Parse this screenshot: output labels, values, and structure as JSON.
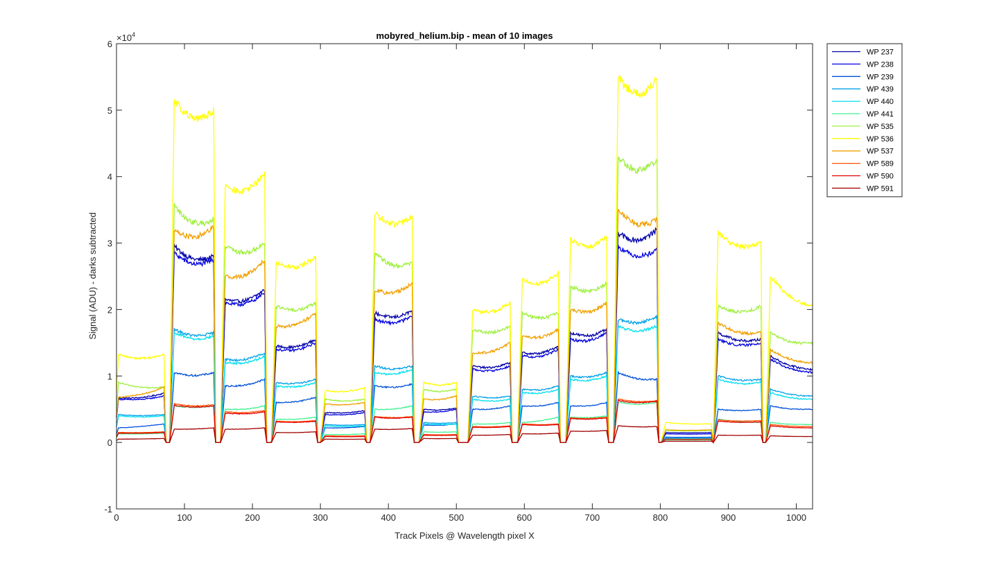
{
  "chart_data": {
    "type": "line",
    "title": "mobyred_helium.bip - mean of 10 images",
    "xlabel": "Track Pixels @ Wavelength pixel X",
    "ylabel": "Signal (ADU) - darks subtracted",
    "exponent_label": "×10",
    "exponent_power": "4",
    "xlim": [
      0,
      1024
    ],
    "ylim": [
      -1,
      6
    ],
    "y_scale_factor": 10000,
    "xticks": [
      "0",
      "100",
      "200",
      "300",
      "400",
      "500",
      "600",
      "700",
      "800",
      "900",
      "1000"
    ],
    "yticks": [
      "-1",
      "0",
      "1",
      "2",
      "3",
      "4",
      "5",
      "6"
    ],
    "legend_position": "outside-top-right",
    "segments": [
      {
        "start": 3,
        "end": 70
      },
      {
        "start": 85,
        "end": 143
      },
      {
        "start": 160,
        "end": 218
      },
      {
        "start": 235,
        "end": 293
      },
      {
        "start": 307,
        "end": 365
      },
      {
        "start": 380,
        "end": 435
      },
      {
        "start": 452,
        "end": 500
      },
      {
        "start": 524,
        "end": 579
      },
      {
        "start": 597,
        "end": 650
      },
      {
        "start": 668,
        "end": 721
      },
      {
        "start": 738,
        "end": 795
      },
      {
        "start": 808,
        "end": 875
      },
      {
        "start": 885,
        "end": 948
      },
      {
        "start": 962,
        "end": 1024
      }
    ],
    "series": [
      {
        "name": "WP 237",
        "color": "#0000a8",
        "levels": [
          [
            6.7,
            7.4
          ],
          [
            29.5,
            28.0
          ],
          [
            21.5,
            23.0
          ],
          [
            14.5,
            15.5
          ],
          [
            4.5,
            4.8
          ],
          [
            19.5,
            19.8
          ],
          [
            5.0,
            5.2
          ],
          [
            11.5,
            12.0
          ],
          [
            13.5,
            14.5
          ],
          [
            16.5,
            17.0
          ],
          [
            31.5,
            32.0
          ],
          [
            1.5,
            1.5
          ],
          [
            16.5,
            15.5
          ],
          [
            13.0,
            11.0
          ]
        ]
      },
      {
        "name": "WP 238",
        "color": "#0000e0",
        "levels": [
          [
            6.5,
            7.0
          ],
          [
            28.5,
            27.5
          ],
          [
            21.0,
            22.5
          ],
          [
            14.0,
            15.0
          ],
          [
            4.2,
            4.5
          ],
          [
            18.5,
            19.0
          ],
          [
            4.6,
            5.0
          ],
          [
            11.0,
            11.5
          ],
          [
            13.0,
            14.0
          ],
          [
            15.5,
            16.5
          ],
          [
            29.5,
            29.0
          ],
          [
            1.3,
            1.3
          ],
          [
            15.5,
            15.0
          ],
          [
            12.5,
            10.5
          ]
        ]
      },
      {
        "name": "WP 239",
        "color": "#0050d8",
        "levels": [
          [
            2.2,
            2.8
          ],
          [
            10.5,
            10.5
          ],
          [
            8.5,
            9.5
          ],
          [
            6.0,
            6.8
          ],
          [
            2.2,
            2.4
          ],
          [
            8.5,
            8.8
          ],
          [
            2.6,
            2.8
          ],
          [
            5.0,
            5.5
          ],
          [
            5.5,
            6.0
          ],
          [
            5.5,
            6.0
          ],
          [
            10.5,
            9.5
          ],
          [
            0.8,
            0.8
          ],
          [
            5.0,
            5.0
          ],
          [
            5.5,
            5.0
          ]
        ]
      },
      {
        "name": "WP 439",
        "color": "#00a0e8",
        "levels": [
          [
            4.2,
            4.2
          ],
          [
            17.0,
            16.5
          ],
          [
            12.5,
            13.5
          ],
          [
            9.0,
            9.5
          ],
          [
            2.7,
            2.7
          ],
          [
            11.5,
            11.5
          ],
          [
            3.0,
            3.0
          ],
          [
            7.0,
            7.0
          ],
          [
            8.0,
            8.5
          ],
          [
            10.0,
            10.5
          ],
          [
            18.5,
            19.0
          ],
          [
            0.7,
            0.7
          ],
          [
            10.0,
            9.5
          ],
          [
            8.0,
            7.0
          ]
        ]
      },
      {
        "name": "WP 440",
        "color": "#00e0f0",
        "levels": [
          [
            4.0,
            4.0
          ],
          [
            16.5,
            16.0
          ],
          [
            12.0,
            13.0
          ],
          [
            8.5,
            9.0
          ],
          [
            2.5,
            2.5
          ],
          [
            10.5,
            11.0
          ],
          [
            2.8,
            2.8
          ],
          [
            6.5,
            6.5
          ],
          [
            7.5,
            8.0
          ],
          [
            9.5,
            10.0
          ],
          [
            17.5,
            17.5
          ],
          [
            0.6,
            0.6
          ],
          [
            9.5,
            9.0
          ],
          [
            7.5,
            6.5
          ]
        ]
      },
      {
        "name": "WP 441",
        "color": "#40f090",
        "levels": [
          [
            1.3,
            1.4
          ],
          [
            5.5,
            5.5
          ],
          [
            5.0,
            5.5
          ],
          [
            3.5,
            3.8
          ],
          [
            1.2,
            1.3
          ],
          [
            5.0,
            5.5
          ],
          [
            1.6,
            1.6
          ],
          [
            2.8,
            3.0
          ],
          [
            3.0,
            3.8
          ],
          [
            3.8,
            4.0
          ],
          [
            6.0,
            6.0
          ],
          [
            0.4,
            0.4
          ],
          [
            3.5,
            3.0
          ],
          [
            3.0,
            2.7
          ]
        ]
      },
      {
        "name": "WP 535",
        "color": "#a0f040",
        "levels": [
          [
            9.0,
            8.3
          ],
          [
            35.5,
            33.5
          ],
          [
            29.5,
            30.0
          ],
          [
            20.5,
            21.0
          ],
          [
            6.5,
            6.5
          ],
          [
            28.5,
            27.0
          ],
          [
            8.0,
            8.0
          ],
          [
            17.0,
            17.5
          ],
          [
            19.5,
            19.5
          ],
          [
            23.5,
            24.0
          ],
          [
            43.0,
            42.5
          ],
          [
            1.8,
            1.8
          ],
          [
            20.5,
            20.5
          ],
          [
            16.5,
            15.0
          ]
        ]
      },
      {
        "name": "WP 536",
        "color": "#ffff00",
        "levels": [
          [
            13.2,
            13.2
          ],
          [
            51.5,
            50.0
          ],
          [
            38.5,
            40.5
          ],
          [
            27.0,
            28.0
          ],
          [
            7.8,
            8.2
          ],
          [
            34.5,
            34.0
          ],
          [
            9.0,
            9.0
          ],
          [
            20.0,
            21.0
          ],
          [
            24.5,
            25.5
          ],
          [
            30.5,
            31.0
          ],
          [
            55.0,
            54.5
          ],
          [
            3.0,
            2.8
          ],
          [
            31.5,
            30.0
          ],
          [
            25.0,
            20.5
          ]
        ]
      },
      {
        "name": "WP 537",
        "color": "#f0a000",
        "levels": [
          [
            6.8,
            8.3
          ],
          [
            32.0,
            32.5
          ],
          [
            25.0,
            27.5
          ],
          [
            17.5,
            19.5
          ],
          [
            5.8,
            6.0
          ],
          [
            23.0,
            24.0
          ],
          [
            6.5,
            7.0
          ],
          [
            13.5,
            15.0
          ],
          [
            16.0,
            17.0
          ],
          [
            20.0,
            21.0
          ],
          [
            35.0,
            33.5
          ],
          [
            1.9,
            1.9
          ],
          [
            18.0,
            16.5
          ],
          [
            14.0,
            12.0
          ]
        ]
      },
      {
        "name": "WP 589",
        "color": "#ff5000",
        "levels": [
          [
            1.5,
            1.6
          ],
          [
            5.8,
            5.7
          ],
          [
            4.6,
            4.8
          ],
          [
            3.2,
            3.3
          ],
          [
            1.0,
            1.0
          ],
          [
            3.9,
            3.9
          ],
          [
            1.2,
            1.2
          ],
          [
            2.4,
            2.5
          ],
          [
            2.8,
            2.8
          ],
          [
            3.7,
            3.8
          ],
          [
            6.5,
            6.3
          ],
          [
            0.5,
            0.5
          ],
          [
            3.4,
            3.3
          ],
          [
            2.7,
            2.4
          ]
        ]
      },
      {
        "name": "WP 590",
        "color": "#e00000",
        "levels": [
          [
            1.4,
            1.5
          ],
          [
            5.6,
            5.5
          ],
          [
            4.4,
            4.6
          ],
          [
            3.1,
            3.2
          ],
          [
            0.9,
            0.9
          ],
          [
            3.8,
            3.8
          ],
          [
            1.1,
            1.1
          ],
          [
            2.3,
            2.4
          ],
          [
            2.7,
            2.7
          ],
          [
            3.6,
            3.7
          ],
          [
            6.3,
            6.2
          ],
          [
            0.5,
            0.5
          ],
          [
            3.2,
            3.1
          ],
          [
            2.5,
            2.2
          ]
        ]
      },
      {
        "name": "WP 591",
        "color": "#a00000",
        "levels": [
          [
            0.5,
            0.6
          ],
          [
            2.0,
            2.2
          ],
          [
            2.0,
            2.2
          ],
          [
            1.5,
            1.6
          ],
          [
            0.5,
            0.5
          ],
          [
            2.0,
            2.1
          ],
          [
            0.6,
            0.6
          ],
          [
            1.1,
            1.2
          ],
          [
            1.3,
            1.4
          ],
          [
            1.7,
            1.8
          ],
          [
            2.5,
            2.4
          ],
          [
            0.2,
            0.2
          ],
          [
            1.1,
            1.1
          ],
          [
            1.0,
            0.9
          ]
        ]
      }
    ]
  }
}
